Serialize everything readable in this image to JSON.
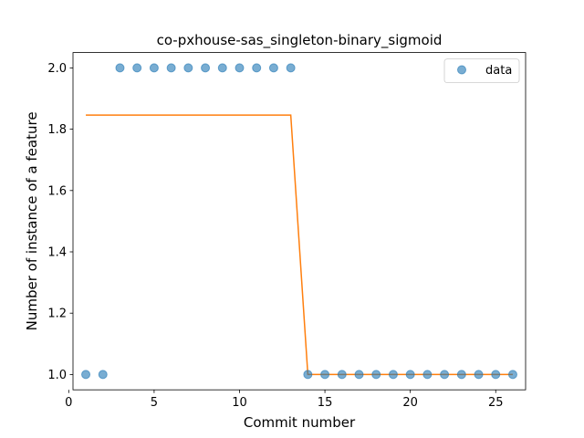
{
  "chart_data": {
    "type": "scatter",
    "title": "co-pxhouse-sas_singleton-binary_sigmoid",
    "xlabel": "Commit number",
    "ylabel": "Number of instance of a feature",
    "xlim": [
      0.25,
      26.75
    ],
    "ylim": [
      0.95,
      2.05
    ],
    "xticks": [
      0,
      5,
      10,
      15,
      20,
      25
    ],
    "yticks": [
      1.0,
      1.2,
      1.4,
      1.6,
      1.8,
      2.0
    ],
    "ytick_labels": [
      "1.0",
      "1.2",
      "1.4",
      "1.6",
      "1.8",
      "2.0"
    ],
    "grid": false,
    "legend": {
      "placement": "top-right",
      "entries": [
        "data"
      ]
    },
    "series": [
      {
        "name": "data",
        "kind": "scatter",
        "color": "#1f77b4",
        "x": [
          1,
          2,
          3,
          4,
          5,
          6,
          7,
          8,
          9,
          10,
          11,
          12,
          13,
          14,
          15,
          16,
          17,
          18,
          19,
          20,
          21,
          22,
          23,
          24,
          25,
          26
        ],
        "y": [
          1,
          1,
          2,
          2,
          2,
          2,
          2,
          2,
          2,
          2,
          2,
          2,
          2,
          1,
          1,
          1,
          1,
          1,
          1,
          1,
          1,
          1,
          1,
          1,
          1,
          1
        ]
      },
      {
        "kind": "line",
        "color": "#ff7f0e",
        "x": [
          1,
          2,
          3,
          4,
          5,
          6,
          7,
          8,
          9,
          10,
          11,
          12,
          13,
          14,
          15,
          16,
          17,
          18,
          19,
          20,
          21,
          22,
          23,
          24,
          25,
          26
        ],
        "y": [
          1.846,
          1.846,
          1.846,
          1.846,
          1.846,
          1.846,
          1.846,
          1.846,
          1.846,
          1.846,
          1.846,
          1.846,
          1.846,
          1.0,
          1.0,
          1.0,
          1.0,
          1.0,
          1.0,
          1.0,
          1.0,
          1.0,
          1.0,
          1.0,
          1.0,
          1.0
        ]
      }
    ]
  }
}
